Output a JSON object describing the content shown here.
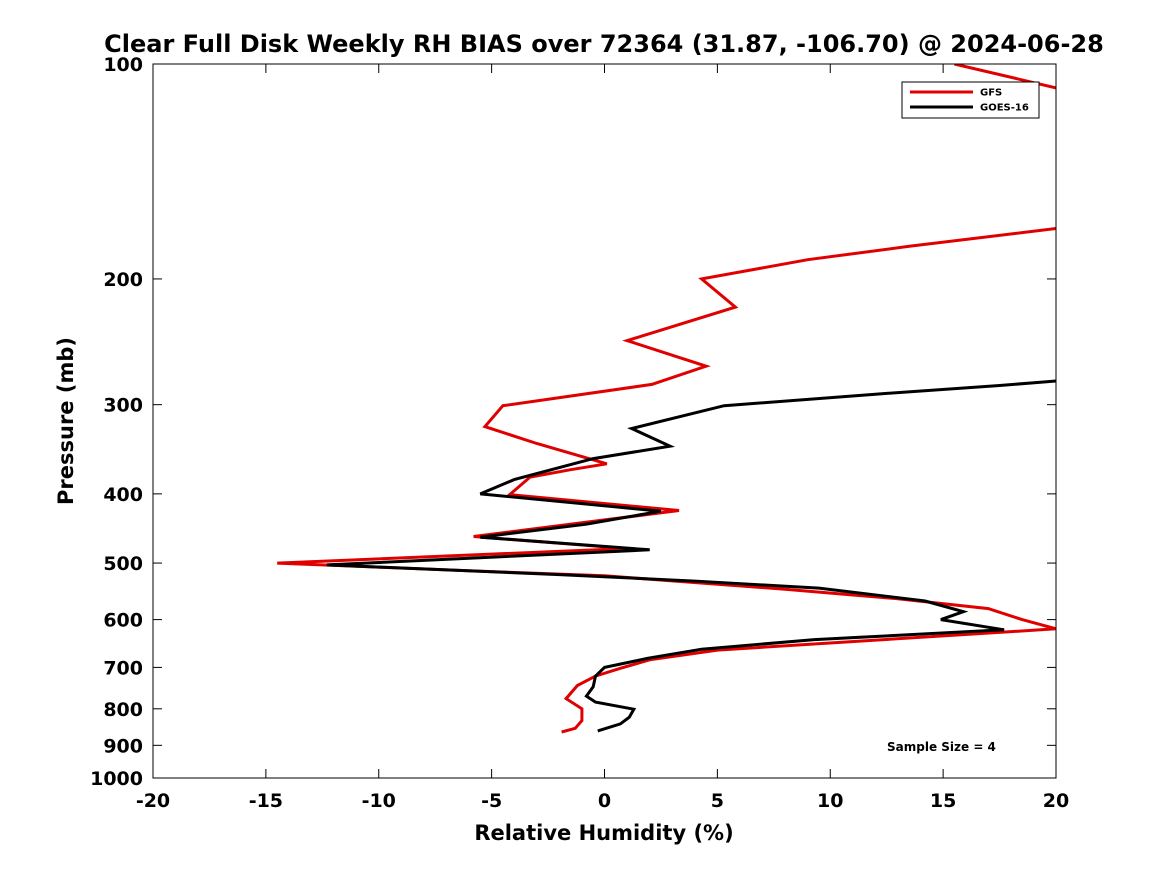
{
  "chart_data": {
    "type": "line",
    "title": "Clear Full Disk Weekly RH BIAS over 72364 (31.87, -106.70) @ 2024-06-28",
    "xlabel": "Relative Humidity (%)",
    "ylabel": "Pressure (mb)",
    "xlim": [
      -20,
      20
    ],
    "ylim": [
      100,
      1000
    ],
    "y_scale": "log",
    "y_reversed": true,
    "x_ticks": [
      -20,
      -15,
      -10,
      -5,
      0,
      5,
      10,
      15,
      20
    ],
    "x_tick_labels": [
      "-20",
      "-15",
      "-10",
      "-5",
      "0",
      "5",
      "10",
      "15",
      "20"
    ],
    "y_ticks": [
      100,
      200,
      300,
      400,
      500,
      600,
      700,
      800,
      900,
      1000
    ],
    "y_tick_labels": [
      "100",
      "200",
      "300",
      "400",
      "500",
      "600",
      "700",
      "800",
      "900",
      "1000"
    ],
    "grid": false,
    "legend_position": "top-right",
    "annotation": "Sample Size = 4",
    "series": [
      {
        "name": "GFS",
        "color": "#e00000",
        "points": [
          [
            15.5,
            100
          ],
          [
            20,
            108
          ],
          [
            20,
            170
          ],
          [
            13.5,
            180
          ],
          [
            9,
            188
          ],
          [
            4.3,
            200
          ],
          [
            5.8,
            219
          ],
          [
            1,
            244
          ],
          [
            4.5,
            265
          ],
          [
            2.1,
            281
          ],
          [
            -4.5,
            301
          ],
          [
            -5.3,
            322
          ],
          [
            -3,
            340
          ],
          [
            0.1,
            363
          ],
          [
            -1.5,
            370
          ],
          [
            -3.3,
            379
          ],
          [
            -4.2,
            401
          ],
          [
            3.3,
            422
          ],
          [
            -5.8,
            459
          ],
          [
            1,
            477
          ],
          [
            -14.5,
            500
          ],
          [
            -5,
            514
          ],
          [
            0,
            521
          ],
          [
            8,
            544
          ],
          [
            13,
            561
          ],
          [
            17,
            579
          ],
          [
            18.5,
            600
          ],
          [
            20,
            618
          ],
          [
            5,
            662
          ],
          [
            2,
            683
          ],
          [
            0.7,
            702
          ],
          [
            -0.4,
            720
          ],
          [
            -1.2,
            742
          ],
          [
            -1.7,
            774
          ],
          [
            -1,
            800
          ],
          [
            -1,
            831
          ],
          [
            -1.3,
            852
          ],
          [
            -1.9,
            862
          ]
        ]
      },
      {
        "name": "GOES-16",
        "color": "#000000",
        "points": [
          [
            20,
            278
          ],
          [
            17.5,
            282
          ],
          [
            12,
            290
          ],
          [
            5.3,
            301
          ],
          [
            1.2,
            324
          ],
          [
            2.9,
            343
          ],
          [
            -0.5,
            357
          ],
          [
            -4,
            382
          ],
          [
            -5.5,
            400
          ],
          [
            2.5,
            423
          ],
          [
            -0.8,
            441
          ],
          [
            -5.5,
            460
          ],
          [
            2,
            479
          ],
          [
            -12.3,
            503
          ],
          [
            -2,
            519
          ],
          [
            4,
            530
          ],
          [
            9.5,
            542
          ],
          [
            14.2,
            565
          ],
          [
            15.9,
            585
          ],
          [
            14.9,
            600
          ],
          [
            17.7,
            620
          ],
          [
            9.3,
            640
          ],
          [
            4.3,
            660
          ],
          [
            1.9,
            680
          ],
          [
            0,
            700
          ],
          [
            -0.4,
            720
          ],
          [
            -0.5,
            745
          ],
          [
            -0.8,
            768
          ],
          [
            -0.4,
            783
          ],
          [
            1.3,
            801
          ],
          [
            1.1,
            822
          ],
          [
            0.7,
            840
          ],
          [
            -0.3,
            859
          ]
        ]
      }
    ]
  }
}
